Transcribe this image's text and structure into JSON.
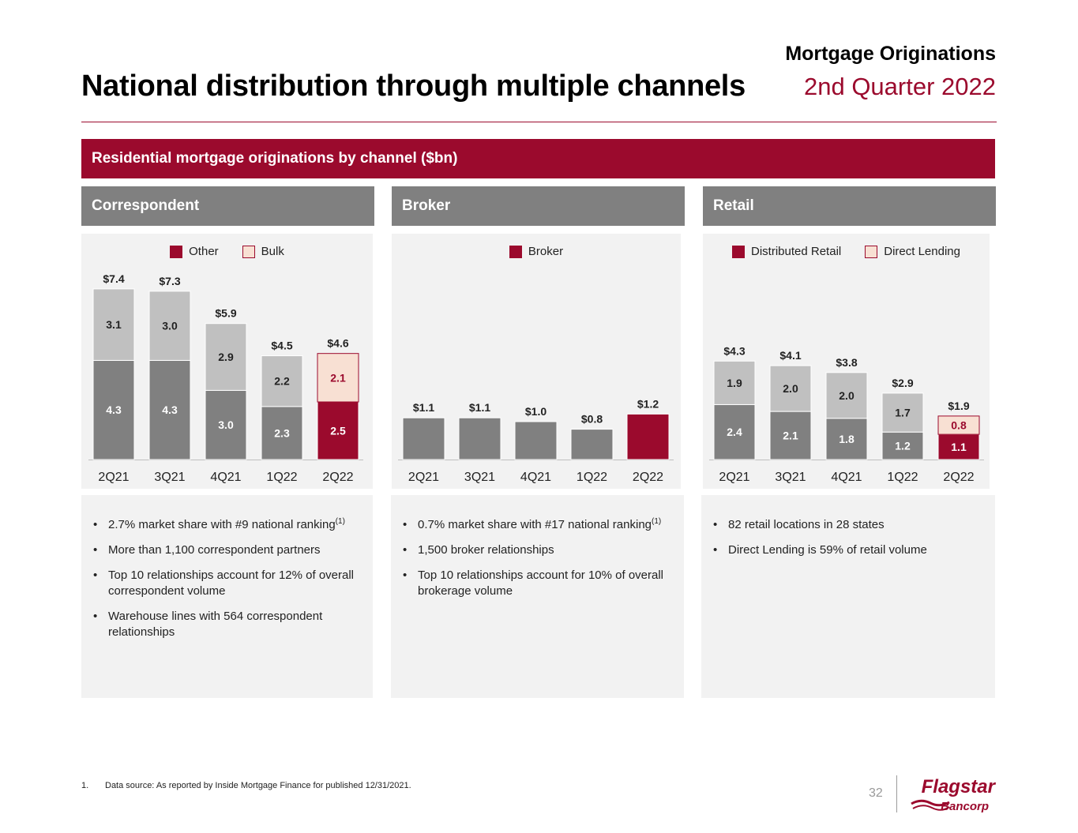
{
  "header": {
    "title": "National distribution through multiple channels",
    "section": "Mortgage Originations",
    "period": "2nd Quarter 2022"
  },
  "banner": "Residential mortgage originations by channel ($bn)",
  "colors": {
    "brand": "#9b0a2d",
    "dark_gray": "#808080",
    "light_gray": "#c0c0c0",
    "bulk": "#f8e0d3",
    "panel": "#f2f2f2"
  },
  "channels": [
    {
      "name": "Correspondent",
      "bullets": [
        {
          "text": "2.7% market share with #9 national ranking",
          "sup": "(1)"
        },
        {
          "text": "More than 1,100 correspondent partners",
          "sup": ""
        },
        {
          "text": "Top 10 relationships account for 12% of overall correspondent volume",
          "sup": ""
        },
        {
          "text": "Warehouse lines with 564 correspondent relationships",
          "sup": ""
        }
      ]
    },
    {
      "name": "Broker",
      "bullets": [
        {
          "text": "0.7% market share with #17 national ranking",
          "sup": "(1)"
        },
        {
          "text": "1,500 broker relationships",
          "sup": ""
        },
        {
          "text": "Top 10 relationships account for 10% of overall brokerage volume",
          "sup": ""
        }
      ]
    },
    {
      "name": "Retail",
      "bullets": [
        {
          "text": "82 retail locations in 28 states",
          "sup": ""
        },
        {
          "text": "Direct Lending is 59% of retail volume",
          "sup": ""
        }
      ]
    }
  ],
  "chart_data": [
    {
      "type": "bar",
      "stacked": true,
      "title": "Correspondent",
      "categories": [
        "2Q21",
        "3Q21",
        "4Q21",
        "1Q22",
        "2Q22"
      ],
      "series": [
        {
          "name": "Other",
          "values": [
            4.3,
            4.3,
            3.0,
            2.3,
            2.5
          ],
          "labels": [
            "4.3",
            "4.3",
            "3.0",
            "2.3",
            "2.5"
          ]
        },
        {
          "name": "Bulk",
          "values": [
            3.1,
            3.0,
            2.9,
            2.2,
            2.1
          ],
          "labels": [
            "3.1",
            "3.0",
            "2.9",
            "2.2",
            "2.1"
          ]
        }
      ],
      "totals": [
        "$7.4",
        "$7.3",
        "$5.9",
        "$4.5",
        "$4.6"
      ],
      "ylim": [
        0,
        8.2
      ]
    },
    {
      "type": "bar",
      "stacked": false,
      "title": "Broker",
      "categories": [
        "2Q21",
        "3Q21",
        "4Q21",
        "1Q22",
        "2Q22"
      ],
      "series": [
        {
          "name": "Broker",
          "values": [
            1.1,
            1.1,
            1.0,
            0.8,
            1.2
          ],
          "labels": [
            "",
            "",
            "",
            "",
            ""
          ]
        }
      ],
      "totals": [
        "$1.1",
        "$1.1",
        "$1.0",
        "$0.8",
        "$1.2"
      ],
      "ylim": [
        0,
        8.2
      ]
    },
    {
      "type": "bar",
      "stacked": true,
      "title": "Retail",
      "categories": [
        "2Q21",
        "3Q21",
        "4Q21",
        "1Q22",
        "2Q22"
      ],
      "series": [
        {
          "name": "Distributed Retail",
          "values": [
            2.4,
            2.1,
            1.8,
            1.2,
            1.1
          ],
          "labels": [
            "2.4",
            "2.1",
            "1.8",
            "1.2",
            "1.1"
          ]
        },
        {
          "name": "Direct Lending",
          "values": [
            1.9,
            2.0,
            2.0,
            1.7,
            0.8
          ],
          "labels": [
            "1.9",
            "2.0",
            "2.0",
            "1.7",
            "0.8"
          ]
        }
      ],
      "totals": [
        "$4.3",
        "$4.1",
        "$3.8",
        "$2.9",
        "$1.9"
      ],
      "ylim": [
        0,
        5.8
      ]
    }
  ],
  "footnote": {
    "number": "1.",
    "text": "Data source: As reported by Inside Mortgage Finance for published 12/31/2021."
  },
  "page_number": "32",
  "logo": {
    "brand": "Flagstar",
    "sub": "Bancorp"
  }
}
